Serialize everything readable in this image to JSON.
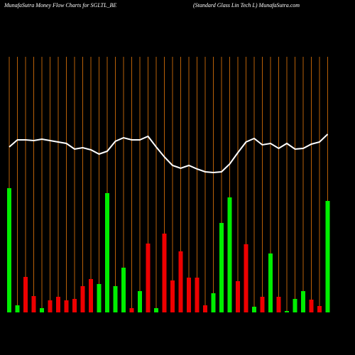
{
  "chart_data": {
    "type": "bar-line",
    "title": "MunafaSutra  Money Flow  Charts for SGLTL_BE",
    "subtitle": "(Standard Glass Lin  Tech L) MunafaSutra.com",
    "categories": [
      null,
      null,
      null,
      null,
      null,
      null,
      null,
      null,
      null,
      null,
      null,
      null,
      null,
      null,
      null,
      null,
      null,
      null,
      null,
      null,
      null,
      null,
      null,
      null,
      null,
      null,
      null,
      null,
      null,
      null,
      null,
      null,
      null,
      null,
      null,
      null,
      null,
      null,
      null,
      null
    ],
    "bars": {
      "values": [
        175,
        10,
        50,
        23,
        6,
        17,
        22,
        17,
        19,
        37,
        47,
        40,
        168,
        37,
        63,
        6,
        30,
        97,
        6,
        111,
        45,
        86,
        49,
        49,
        10,
        27,
        126,
        162,
        44,
        96,
        8,
        22,
        83,
        22,
        2,
        19,
        30,
        18,
        9,
        157
      ],
      "colors": [
        "#00ee00",
        "#00ee00",
        "#ee0000",
        "#ee0000",
        "#00ee00",
        "#ee0000",
        "#ee0000",
        "#ee0000",
        "#ee0000",
        "#ee0000",
        "#ee0000",
        "#00ee00",
        "#00ee00",
        "#00ee00",
        "#00ee00",
        "#ee0000",
        "#00ee00",
        "#ee0000",
        "#00ee00",
        "#ee0000",
        "#ee0000",
        "#ee0000",
        "#ee0000",
        "#ee0000",
        "#ee0000",
        "#00ee00",
        "#00ee00",
        "#00ee00",
        "#ee0000",
        "#ee0000",
        "#00ee00",
        "#ee0000",
        "#00ee00",
        "#ee0000",
        "#00ee00",
        "#00ee00",
        "#00ee00",
        "#ee0000",
        "#ee0000",
        "#00ee00"
      ]
    },
    "line": {
      "color": "#ffffff",
      "values": [
        233,
        243,
        243,
        242,
        244,
        242,
        240,
        238,
        230,
        232,
        229,
        223,
        227,
        241,
        246,
        243,
        243,
        248,
        233,
        219,
        207,
        203,
        207,
        202,
        198,
        197,
        198,
        209,
        225,
        240,
        245,
        236,
        238,
        231,
        238,
        230,
        231,
        237,
        240,
        251
      ]
    },
    "ylim": [
      0,
      440
    ],
    "grid": true,
    "grid_color": "#b86008",
    "background": "#000000"
  }
}
